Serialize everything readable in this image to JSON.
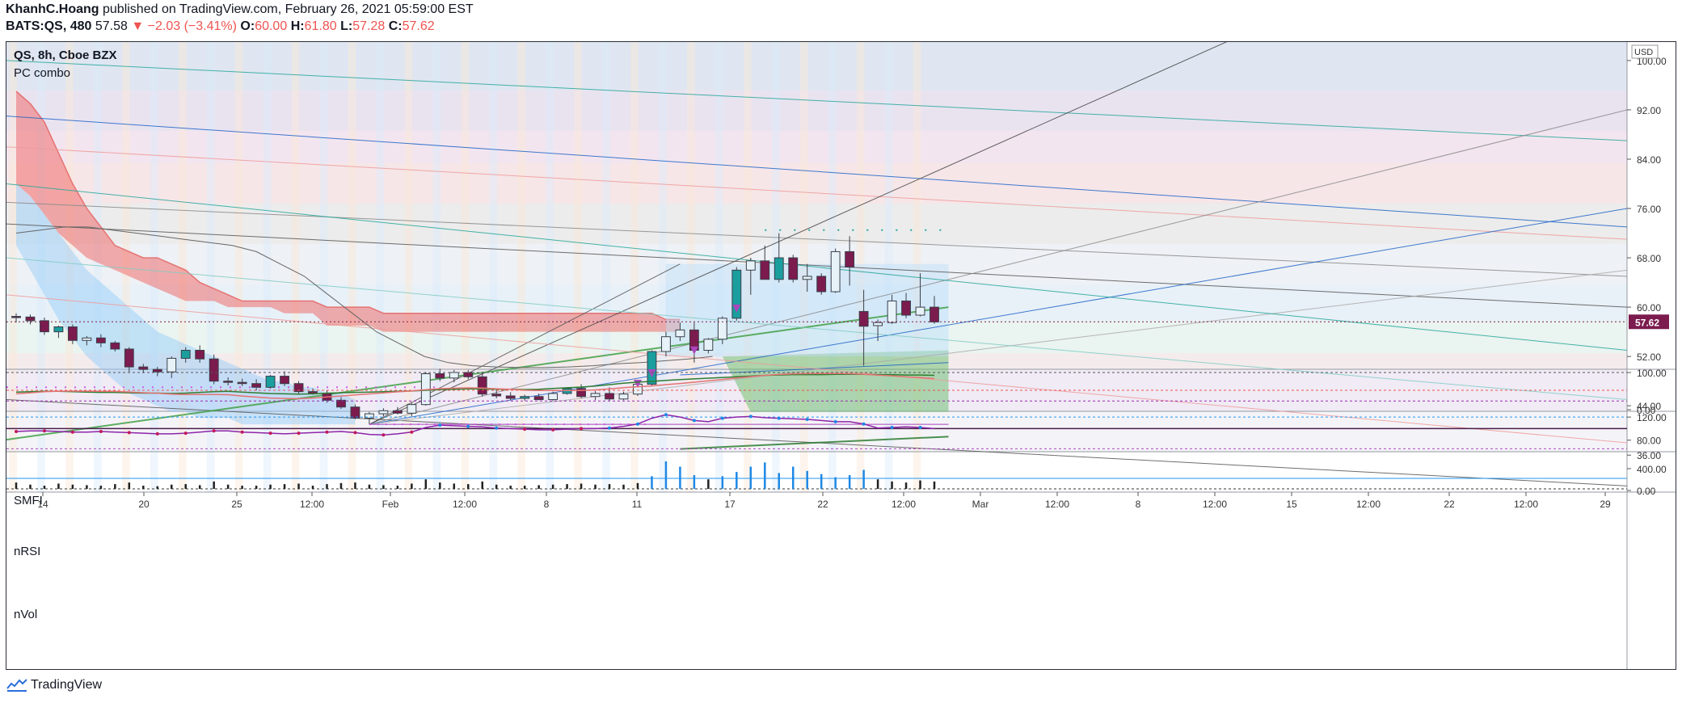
{
  "header": {
    "author": "KhanhC.Hoang",
    "published": "published on TradingView.com, February 26, 2021 05:59:00 EST",
    "symbol": "BATS:QS, 480",
    "last": "57.58",
    "change_arrow": "▼",
    "change": "−2.03 (−3.41%)",
    "o_label": "O:",
    "o": "60.00",
    "h_label": "H:",
    "h": "61.80",
    "l_label": "L:",
    "l": "57.28",
    "c_label": "C:",
    "c": "57.62"
  },
  "legend": {
    "instrument": "QS, 8h, Cboe BZX",
    "study": "PC combo"
  },
  "panes": {
    "smfi": "SMFI",
    "nrsi": "nRSI",
    "nvol": "nVol"
  },
  "footer": {
    "brand": "TradingView",
    "logo_icon": "tradingview-logo-icon"
  },
  "colors": {
    "up": "#1b9e9e",
    "down": "#7b1b4e",
    "grid": "#e0e3eb",
    "accent_red": "#ef5350",
    "accent_blue": "#2196f3"
  },
  "chart_data": {
    "type": "candlestick",
    "currency": "USD",
    "price_axis": {
      "ticks": [
        "100.00",
        "92.00",
        "84.00",
        "76.00",
        "68.00",
        "60.00",
        "52.00",
        "44.00",
        "36.00"
      ],
      "range": [
        30,
        103
      ]
    },
    "last_price_label": "57.62",
    "smfi_axis": [
      "100.00",
      "0.00"
    ],
    "nrsi_axis": [
      "120.00",
      "80.00"
    ],
    "nvol_axis": [
      "400.00",
      "0.00"
    ],
    "time_axis": [
      "14",
      "20",
      "25",
      "12:00",
      "Feb",
      "12:00",
      "8",
      "11",
      "17",
      "22",
      "12:00",
      "Mar",
      "12:00",
      "8",
      "12:00",
      "15",
      "12:00",
      "22",
      "12:00",
      "29"
    ],
    "candles_ohlc": [
      [
        58.5,
        59.0,
        57.5,
        58.4
      ],
      [
        58.4,
        58.8,
        57.2,
        57.8
      ],
      [
        57.8,
        58.3,
        55.5,
        56.0
      ],
      [
        56.0,
        57.0,
        55.0,
        56.8
      ],
      [
        56.8,
        57.2,
        54.0,
        54.6
      ],
      [
        54.6,
        55.3,
        53.8,
        55.0
      ],
      [
        55.0,
        55.6,
        53.5,
        54.2
      ],
      [
        54.2,
        54.5,
        52.8,
        53.2
      ],
      [
        53.2,
        53.5,
        49.5,
        50.3
      ],
      [
        50.3,
        50.8,
        49.3,
        49.9
      ],
      [
        49.9,
        50.3,
        48.8,
        49.5
      ],
      [
        49.5,
        52.0,
        48.5,
        51.7
      ],
      [
        51.7,
        53.5,
        51.0,
        53.0
      ],
      [
        53.0,
        53.8,
        51.0,
        51.6
      ],
      [
        51.6,
        52.3,
        47.5,
        48.0
      ],
      [
        48.0,
        48.6,
        47.3,
        47.8
      ],
      [
        47.8,
        48.4,
        47.2,
        47.6
      ],
      [
        47.6,
        48.3,
        46.5,
        47.0
      ],
      [
        47.0,
        49.0,
        46.8,
        48.8
      ],
      [
        48.8,
        49.6,
        47.2,
        47.6
      ],
      [
        47.6,
        48.0,
        46.0,
        46.3
      ],
      [
        46.3,
        46.8,
        45.8,
        46.0
      ],
      [
        46.0,
        46.5,
        44.5,
        44.9
      ],
      [
        44.9,
        45.4,
        43.5,
        43.8
      ],
      [
        43.8,
        44.2,
        41.8,
        42.0
      ],
      [
        42.0,
        43.0,
        41.0,
        42.7
      ],
      [
        42.7,
        43.6,
        42.3,
        43.2
      ],
      [
        43.2,
        43.8,
        42.6,
        42.8
      ],
      [
        42.8,
        44.5,
        42.3,
        44.2
      ],
      [
        44.2,
        49.5,
        44.0,
        49.2
      ],
      [
        49.2,
        50.0,
        48.0,
        48.5
      ],
      [
        48.5,
        49.8,
        47.8,
        49.4
      ],
      [
        49.4,
        49.8,
        48.3,
        48.7
      ],
      [
        48.7,
        49.5,
        45.5,
        45.9
      ],
      [
        45.9,
        46.5,
        45.2,
        45.6
      ],
      [
        45.6,
        46.2,
        44.9,
        45.2
      ],
      [
        45.2,
        45.8,
        44.8,
        45.5
      ],
      [
        45.5,
        46.0,
        44.9,
        45.0
      ],
      [
        45.0,
        46.3,
        44.8,
        46.0
      ],
      [
        46.0,
        47.0,
        45.8,
        46.8
      ],
      [
        46.8,
        47.5,
        45.2,
        45.5
      ],
      [
        45.5,
        46.4,
        44.9,
        46.0
      ],
      [
        46.0,
        47.0,
        44.8,
        45.1
      ],
      [
        45.1,
        46.3,
        44.9,
        45.9
      ],
      [
        45.9,
        47.8,
        45.6,
        47.5
      ],
      [
        47.5,
        53.0,
        47.3,
        52.8
      ],
      [
        52.8,
        56.0,
        52.0,
        55.2
      ],
      [
        55.2,
        57.5,
        54.5,
        56.3
      ],
      [
        56.3,
        57.5,
        51.0,
        53.0
      ],
      [
        53.0,
        55.0,
        52.5,
        54.8
      ],
      [
        54.8,
        58.5,
        54.0,
        58.2
      ],
      [
        58.2,
        66.5,
        57.8,
        66.0
      ],
      [
        66.0,
        68.0,
        62.0,
        67.5
      ],
      [
        67.5,
        70.0,
        65.0,
        64.5
      ],
      [
        64.5,
        72.0,
        64.0,
        68.0
      ],
      [
        68.0,
        68.5,
        64.0,
        64.5
      ],
      [
        64.5,
        67.0,
        62.5,
        65.0
      ],
      [
        65.0,
        65.5,
        62.0,
        62.5
      ],
      [
        62.5,
        69.5,
        62.3,
        69.0
      ],
      [
        69.0,
        71.5,
        63.5,
        66.5
      ],
      [
        59.3,
        62.8,
        50.5,
        56.9
      ],
      [
        57.0,
        58.0,
        54.5,
        57.5
      ],
      [
        57.5,
        62.0,
        57.3,
        61.0
      ],
      [
        61.0,
        62.3,
        58.2,
        58.7
      ],
      [
        58.7,
        65.5,
        58.5,
        60.0
      ],
      [
        60.0,
        61.8,
        57.3,
        57.6
      ]
    ],
    "volume": [
      60,
      40,
      30,
      50,
      40,
      35,
      30,
      45,
      60,
      30,
      25,
      40,
      45,
      35,
      70,
      40,
      30,
      30,
      40,
      45,
      50,
      30,
      45,
      55,
      60,
      40,
      35,
      30,
      50,
      90,
      60,
      50,
      45,
      70,
      40,
      30,
      30,
      35,
      40,
      45,
      50,
      40,
      45,
      40,
      55,
      120,
      260,
      210,
      130,
      90,
      120,
      160,
      210,
      250,
      150,
      210,
      170,
      140,
      110,
      130,
      180,
      90,
      70,
      60,
      80,
      70
    ]
  }
}
